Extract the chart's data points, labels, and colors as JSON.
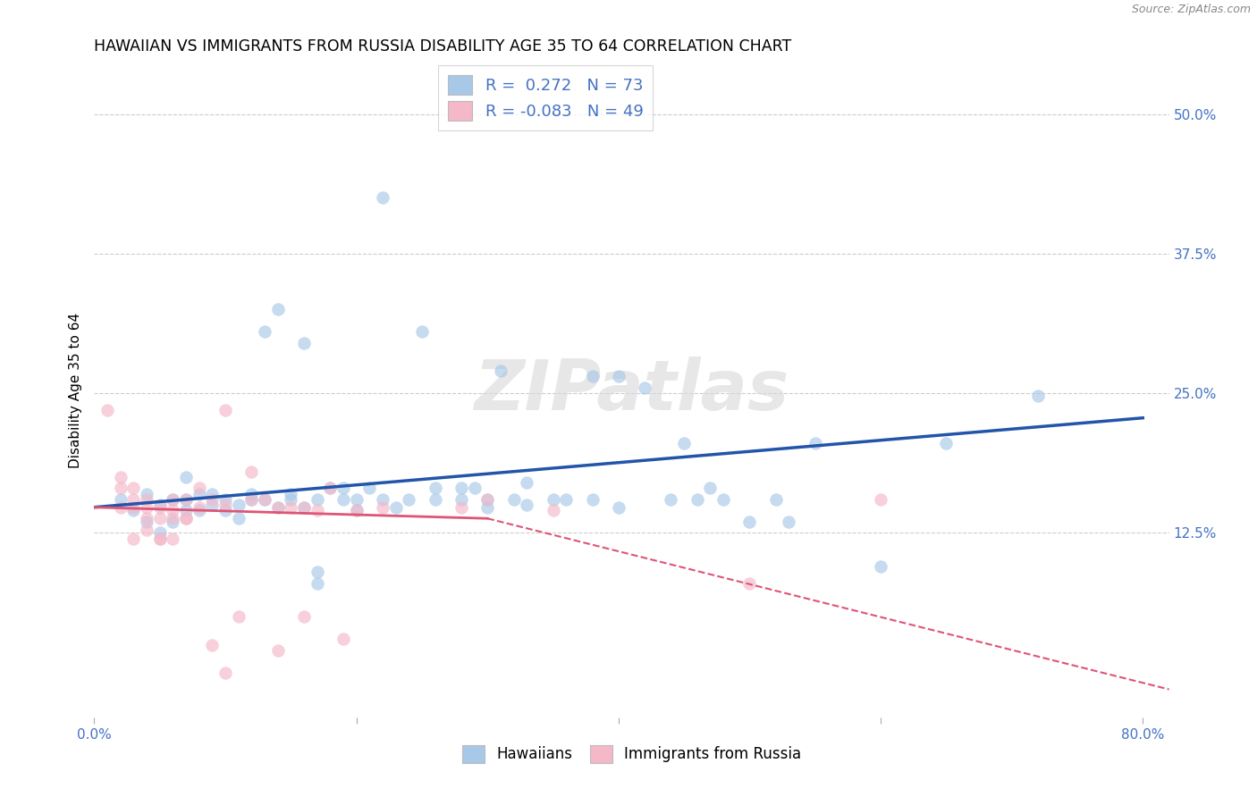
{
  "title": "HAWAIIAN VS IMMIGRANTS FROM RUSSIA DISABILITY AGE 35 TO 64 CORRELATION CHART",
  "source": "Source: ZipAtlas.com",
  "ylabel": "Disability Age 35 to 64",
  "xlim": [
    0.0,
    0.82
  ],
  "ylim": [
    -0.04,
    0.545
  ],
  "xticks": [
    0.0,
    0.2,
    0.4,
    0.6,
    0.8
  ],
  "xticklabels": [
    "0.0%",
    "",
    "",
    "",
    "80.0%"
  ],
  "yticks": [
    0.125,
    0.25,
    0.375,
    0.5
  ],
  "yticklabels": [
    "12.5%",
    "25.0%",
    "37.5%",
    "50.0%"
  ],
  "watermark": "ZIPatlas",
  "blue_R": "0.272",
  "blue_N": "73",
  "pink_R": "-0.083",
  "pink_N": "49",
  "blue_color": "#A8C8E8",
  "pink_color": "#F4B8C8",
  "blue_line_color": "#2255AA",
  "pink_line_color": "#DD5577",
  "blue_line": [
    [
      0.0,
      0.148
    ],
    [
      0.8,
      0.228
    ]
  ],
  "pink_line_solid": [
    [
      0.0,
      0.148
    ],
    [
      0.3,
      0.138
    ]
  ],
  "pink_line_dashed": [
    [
      0.3,
      0.138
    ],
    [
      0.82,
      -0.015
    ]
  ],
  "grid_color": "#cccccc",
  "background": "#ffffff",
  "legend_color": "#4472C4",
  "tick_color": "#4472C4",
  "blue_scatter": [
    [
      0.02,
      0.155
    ],
    [
      0.03,
      0.145
    ],
    [
      0.04,
      0.135
    ],
    [
      0.04,
      0.16
    ],
    [
      0.05,
      0.15
    ],
    [
      0.05,
      0.125
    ],
    [
      0.06,
      0.135
    ],
    [
      0.06,
      0.155
    ],
    [
      0.07,
      0.155
    ],
    [
      0.07,
      0.145
    ],
    [
      0.07,
      0.175
    ],
    [
      0.08,
      0.145
    ],
    [
      0.08,
      0.16
    ],
    [
      0.09,
      0.15
    ],
    [
      0.09,
      0.16
    ],
    [
      0.1,
      0.155
    ],
    [
      0.1,
      0.145
    ],
    [
      0.11,
      0.138
    ],
    [
      0.11,
      0.15
    ],
    [
      0.12,
      0.16
    ],
    [
      0.12,
      0.155
    ],
    [
      0.13,
      0.305
    ],
    [
      0.13,
      0.155
    ],
    [
      0.14,
      0.148
    ],
    [
      0.14,
      0.325
    ],
    [
      0.15,
      0.16
    ],
    [
      0.15,
      0.155
    ],
    [
      0.16,
      0.148
    ],
    [
      0.16,
      0.295
    ],
    [
      0.17,
      0.09
    ],
    [
      0.17,
      0.08
    ],
    [
      0.17,
      0.155
    ],
    [
      0.18,
      0.165
    ],
    [
      0.19,
      0.165
    ],
    [
      0.19,
      0.155
    ],
    [
      0.2,
      0.155
    ],
    [
      0.2,
      0.145
    ],
    [
      0.21,
      0.165
    ],
    [
      0.22,
      0.425
    ],
    [
      0.22,
      0.155
    ],
    [
      0.23,
      0.148
    ],
    [
      0.24,
      0.155
    ],
    [
      0.25,
      0.305
    ],
    [
      0.26,
      0.165
    ],
    [
      0.26,
      0.155
    ],
    [
      0.28,
      0.165
    ],
    [
      0.28,
      0.155
    ],
    [
      0.29,
      0.165
    ],
    [
      0.3,
      0.155
    ],
    [
      0.3,
      0.148
    ],
    [
      0.31,
      0.27
    ],
    [
      0.32,
      0.155
    ],
    [
      0.33,
      0.17
    ],
    [
      0.33,
      0.15
    ],
    [
      0.35,
      0.155
    ],
    [
      0.36,
      0.155
    ],
    [
      0.38,
      0.155
    ],
    [
      0.38,
      0.265
    ],
    [
      0.4,
      0.148
    ],
    [
      0.4,
      0.265
    ],
    [
      0.42,
      0.255
    ],
    [
      0.44,
      0.155
    ],
    [
      0.45,
      0.205
    ],
    [
      0.46,
      0.155
    ],
    [
      0.47,
      0.165
    ],
    [
      0.48,
      0.155
    ],
    [
      0.5,
      0.135
    ],
    [
      0.52,
      0.155
    ],
    [
      0.53,
      0.135
    ],
    [
      0.55,
      0.205
    ],
    [
      0.6,
      0.095
    ],
    [
      0.65,
      0.205
    ],
    [
      0.72,
      0.248
    ]
  ],
  "pink_scatter": [
    [
      0.01,
      0.235
    ],
    [
      0.02,
      0.148
    ],
    [
      0.02,
      0.165
    ],
    [
      0.02,
      0.175
    ],
    [
      0.03,
      0.12
    ],
    [
      0.03,
      0.155
    ],
    [
      0.03,
      0.165
    ],
    [
      0.03,
      0.148
    ],
    [
      0.04,
      0.128
    ],
    [
      0.04,
      0.148
    ],
    [
      0.04,
      0.138
    ],
    [
      0.04,
      0.155
    ],
    [
      0.05,
      0.12
    ],
    [
      0.05,
      0.138
    ],
    [
      0.05,
      0.148
    ],
    [
      0.05,
      0.12
    ],
    [
      0.06,
      0.138
    ],
    [
      0.06,
      0.155
    ],
    [
      0.06,
      0.145
    ],
    [
      0.06,
      0.12
    ],
    [
      0.07,
      0.138
    ],
    [
      0.07,
      0.138
    ],
    [
      0.07,
      0.155
    ],
    [
      0.08,
      0.165
    ],
    [
      0.08,
      0.148
    ],
    [
      0.09,
      0.155
    ],
    [
      0.09,
      0.025
    ],
    [
      0.1,
      0.0
    ],
    [
      0.1,
      0.235
    ],
    [
      0.1,
      0.15
    ],
    [
      0.11,
      0.05
    ],
    [
      0.12,
      0.18
    ],
    [
      0.12,
      0.155
    ],
    [
      0.13,
      0.155
    ],
    [
      0.14,
      0.148
    ],
    [
      0.14,
      0.02
    ],
    [
      0.15,
      0.148
    ],
    [
      0.16,
      0.05
    ],
    [
      0.16,
      0.148
    ],
    [
      0.17,
      0.145
    ],
    [
      0.18,
      0.165
    ],
    [
      0.19,
      0.03
    ],
    [
      0.2,
      0.145
    ],
    [
      0.22,
      0.148
    ],
    [
      0.28,
      0.148
    ],
    [
      0.3,
      0.155
    ],
    [
      0.35,
      0.145
    ],
    [
      0.5,
      0.08
    ],
    [
      0.6,
      0.155
    ]
  ]
}
